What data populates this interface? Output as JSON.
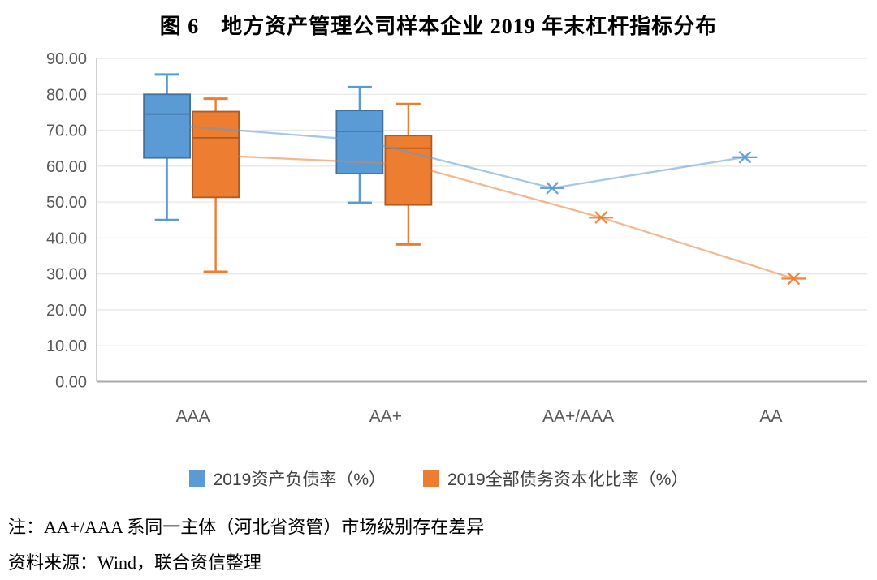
{
  "page": {
    "title": "图 6　地方资产管理公司样本企业 2019 年末杠杆指标分布",
    "note": "注：AA+/AAA 系同一主体（河北省资管）市场级别存在差异",
    "source": "资料来源：Wind，联合资信整理"
  },
  "chart_data": {
    "type": "box-line",
    "title": "图 6　地方资产管理公司样本企业 2019 年末杠杆指标分布",
    "categories": [
      "AAA",
      "AA+",
      "AA+/AAA",
      "AA"
    ],
    "y_axis": {
      "min": 0,
      "max": 90,
      "step": 10,
      "tick_labels": [
        "0.00",
        "10.00",
        "20.00",
        "30.00",
        "40.00",
        "50.00",
        "60.00",
        "70.00",
        "80.00",
        "90.00"
      ]
    },
    "grid": true,
    "legend_position": "bottom",
    "series": [
      {
        "name": "2019资产负债率（%）",
        "color": "#5B9BD5",
        "border_color": "#41719C",
        "boxes": [
          {
            "whisker_low": 45.0,
            "q1": 62.3,
            "median": 74.5,
            "q3": 80.0,
            "whisker_high": 85.5
          },
          {
            "whisker_low": 49.8,
            "q1": 57.9,
            "median": 69.7,
            "q3": 75.5,
            "whisker_high": 82.0
          },
          null,
          null
        ],
        "means": [
          71.5,
          67.3,
          53.9,
          62.5
        ]
      },
      {
        "name": "2019全部债务资本化比率（%）",
        "color": "#ED7D31",
        "border_color": "#AE5A21",
        "boxes": [
          {
            "whisker_low": 30.6,
            "q1": 51.3,
            "median": 67.9,
            "q3": 75.2,
            "whisker_high": 78.8
          },
          {
            "whisker_low": 38.2,
            "q1": 49.2,
            "median": 65.0,
            "q3": 68.5,
            "whisker_high": 77.3
          },
          null,
          null
        ],
        "means": [
          63.0,
          60.5,
          45.7,
          28.7
        ]
      }
    ]
  }
}
